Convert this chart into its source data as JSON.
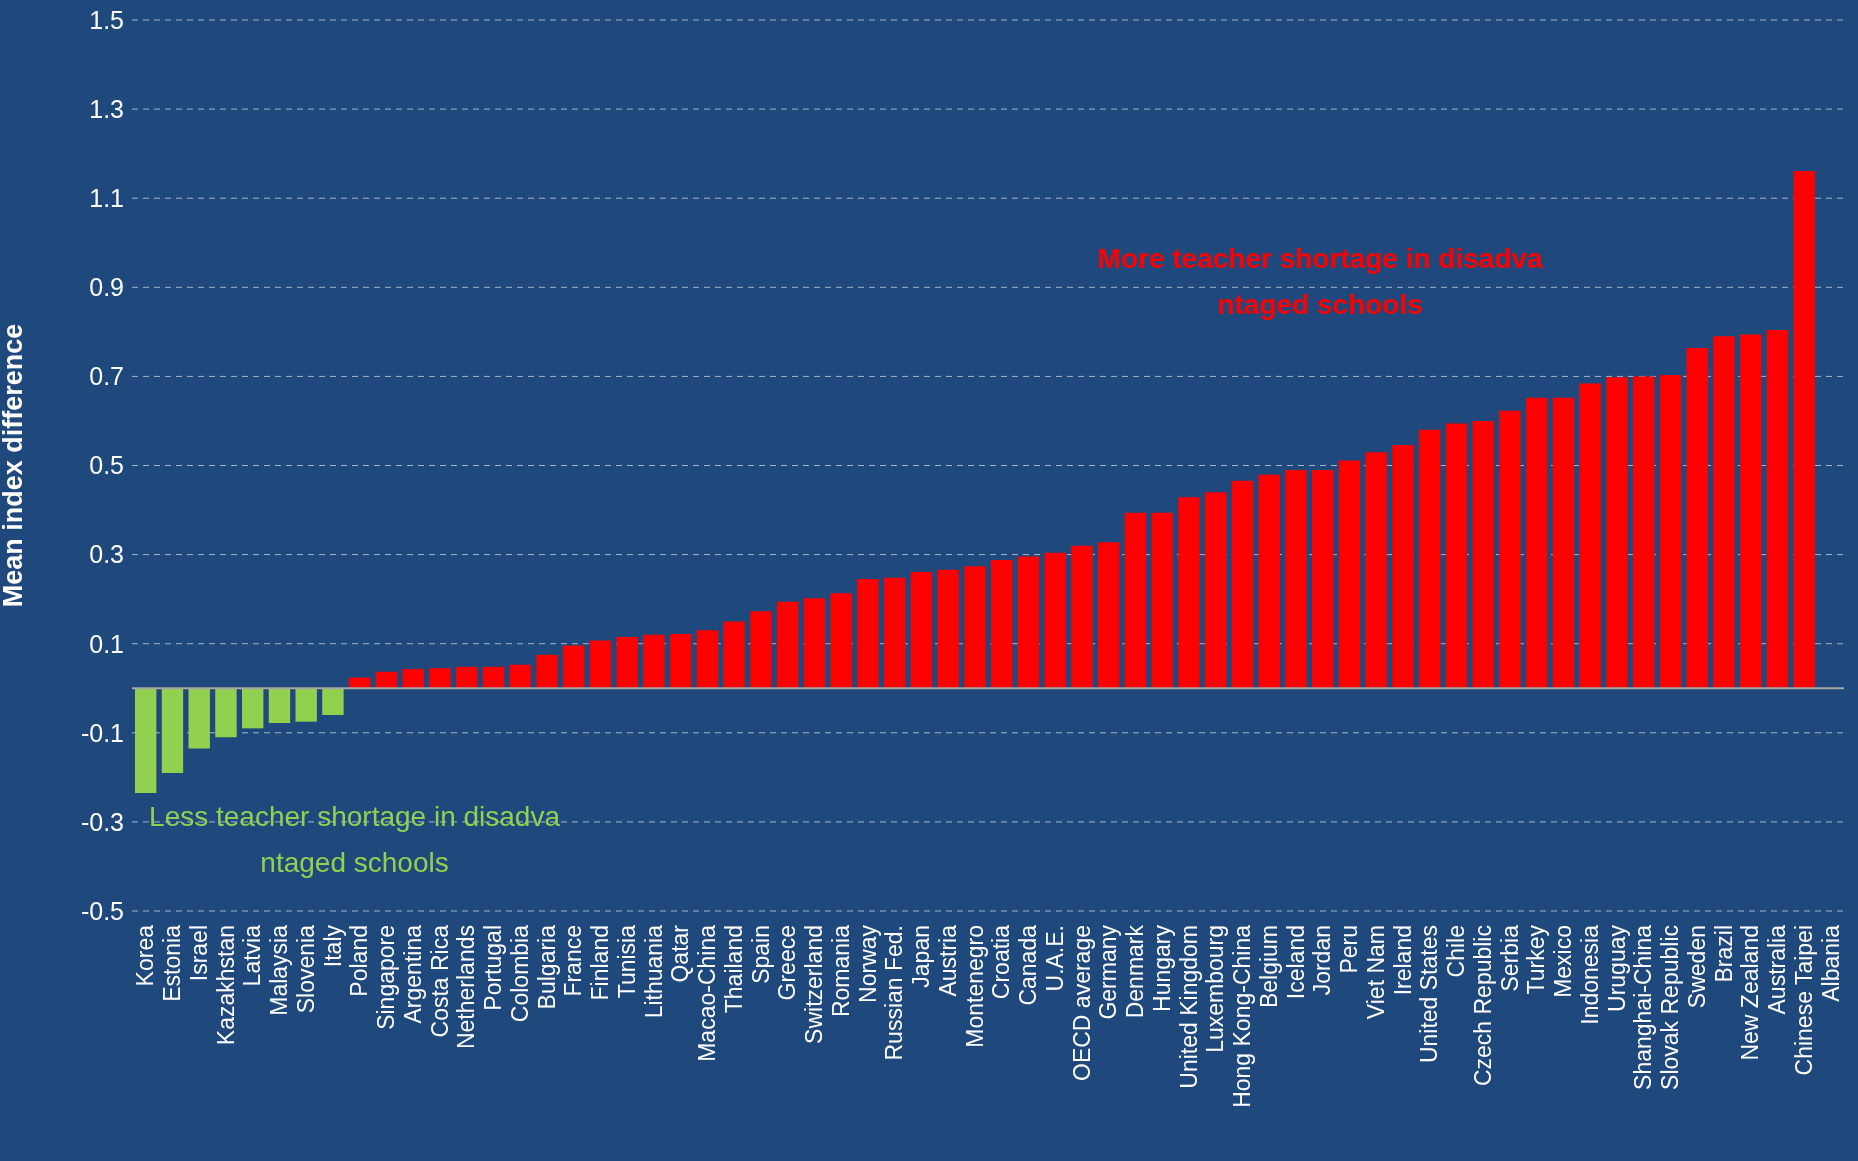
{
  "chart_data": {
    "type": "bar",
    "ylabel": "Mean index difference",
    "categories": [
      "Korea",
      "Estonia",
      "Israel",
      "Kazakhstan",
      "Latvia",
      "Malaysia",
      "Slovenia",
      "Italy",
      "Poland",
      "Singapore",
      "Argentina",
      "Costa Rica",
      "Netherlands",
      "Portugal",
      "Colombia",
      "Bulgaria",
      "France",
      "Finland",
      "Tunisia",
      "Lithuania",
      "Qatar",
      "Macao-China",
      "Thailand",
      "Spain",
      "Greece",
      "Switzerland",
      "Romania",
      "Norway",
      "Russian Fed.",
      "Japan",
      "Austria",
      "Montenegro",
      "Croatia",
      "Canada",
      "U.A.E.",
      "OECD average",
      "Germany",
      "Denmark",
      "Hungary",
      "United Kingdom",
      "Luxembourg",
      "Hong Kong-China",
      "Belgium",
      "Iceland",
      "Jordan",
      "Peru",
      "Viet Nam",
      "Ireland",
      "United States",
      "Chile",
      "Czech Republic",
      "Serbia",
      "Turkey",
      "Mexico",
      "Indonesia",
      "Uruguay",
      "Shanghai-China",
      "Slovak Republic",
      "Sweden",
      "Brazil",
      "New Zealand",
      "Australia",
      "Chinese Taipei",
      "Albania"
    ],
    "values": [
      -0.235,
      -0.19,
      -0.135,
      -0.11,
      -0.09,
      -0.078,
      -0.075,
      -0.06,
      0.024,
      0.037,
      0.043,
      0.045,
      0.048,
      0.048,
      0.053,
      0.075,
      0.096,
      0.107,
      0.115,
      0.12,
      0.122,
      0.13,
      0.15,
      0.173,
      0.194,
      0.202,
      0.213,
      0.245,
      0.248,
      0.261,
      0.266,
      0.274,
      0.288,
      0.296,
      0.304,
      0.32,
      0.328,
      0.394,
      0.394,
      0.429,
      0.44,
      0.466,
      0.479,
      0.49,
      0.49,
      0.511,
      0.53,
      0.546,
      0.58,
      0.594,
      0.6,
      0.623,
      0.652,
      0.652,
      0.684,
      0.698,
      0.7,
      0.703,
      0.764,
      0.79,
      0.794,
      0.804,
      1.161,
      null
    ],
    "colors": [
      "#92d050",
      "#92d050",
      "#92d050",
      "#92d050",
      "#92d050",
      "#92d050",
      "#92d050",
      "#92d050",
      "#ff0000",
      "#ff0000",
      "#ff0000",
      "#ff0000",
      "#ff0000",
      "#ff0000",
      "#ff0000",
      "#ff0000",
      "#ff0000",
      "#ff0000",
      "#ff0000",
      "#ff0000",
      "#ff0000",
      "#ff0000",
      "#ff0000",
      "#ff0000",
      "#ff0000",
      "#ff0000",
      "#ff0000",
      "#ff0000",
      "#ff0000",
      "#ff0000",
      "#ff0000",
      "#ff0000",
      "#ff0000",
      "#ff0000",
      "#ff0000",
      "#ff0000",
      "#ff0000",
      "#ff0000",
      "#ff0000",
      "#ff0000",
      "#ff0000",
      "#ff0000",
      "#ff0000",
      "#ff0000",
      "#ff0000",
      "#ff0000",
      "#ff0000",
      "#ff0000",
      "#ff0000",
      "#ff0000",
      "#ff0000",
      "#ff0000",
      "#ff0000",
      "#ff0000",
      "#ff0000",
      "#ff0000",
      "#ff0000",
      "#ff0000",
      "#ff0000",
      "#ff0000",
      "#ff0000",
      "#ff0000",
      "#ff0000",
      "#ff0000"
    ],
    "ylim": [
      -0.5,
      1.5
    ],
    "yticks": [
      -0.5,
      -0.3,
      -0.1,
      0.1,
      0.3,
      0.5,
      0.7,
      0.9,
      1.1,
      1.3,
      1.5
    ],
    "grid": "y",
    "legend": false,
    "annotations": [
      "More teacher shortage in disadva\nntaged schools",
      "Less teacher shortage in disadva\nntaged schools"
    ]
  }
}
